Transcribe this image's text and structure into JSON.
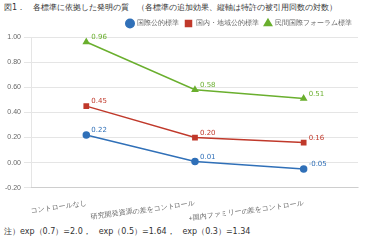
{
  "chart_data": {
    "type": "line",
    "title": "図1．　各標準に依拠した発明の質　（各標準の追加効果、縦軸は特許の被引用回数の対数）",
    "annotations": [
      "注）exp（0.7）=2.0，　exp（0.5）=1.64，　exp（0.3）=1.34"
    ],
    "categories": [
      "コントロールなし",
      "研究開発資源の差をコントロール",
      "+国内ファミリーの差をコントロール"
    ],
    "series": [
      {
        "name": "国際公的標準",
        "color": "#3070B8",
        "marker": "circle",
        "values": [
          0.22,
          0.01,
          -0.05
        ],
        "value_labels": [
          "0.22",
          "0.01",
          "-0.05"
        ]
      },
      {
        "name": "国内・地域公的標準",
        "color": "#C0392B",
        "marker": "square",
        "values": [
          0.45,
          0.2,
          0.16
        ],
        "value_labels": [
          "0.45",
          "0.20",
          "0.16"
        ]
      },
      {
        "name": "民間国際フォーラム標準",
        "color": "#6AAF2E",
        "marker": "triangle",
        "values": [
          0.96,
          0.58,
          0.51
        ],
        "value_labels": [
          "0.96",
          "0.58",
          "0.51"
        ]
      }
    ],
    "ylim": [
      -0.2,
      1.0
    ],
    "yticks": [
      {
        "value": -0.2,
        "label": "-0.20"
      },
      {
        "value": 0,
        "label": "0.00"
      },
      {
        "value": 0.2,
        "label": "0.20"
      },
      {
        "value": 0.4,
        "label": "0.40"
      },
      {
        "value": 0.6,
        "label": "0.60"
      },
      {
        "value": 0.8,
        "label": "0.80"
      },
      {
        "value": 1.0,
        "label": "1.00"
      }
    ],
    "grid": "y",
    "legend": "upper right",
    "data_labels": true
  }
}
